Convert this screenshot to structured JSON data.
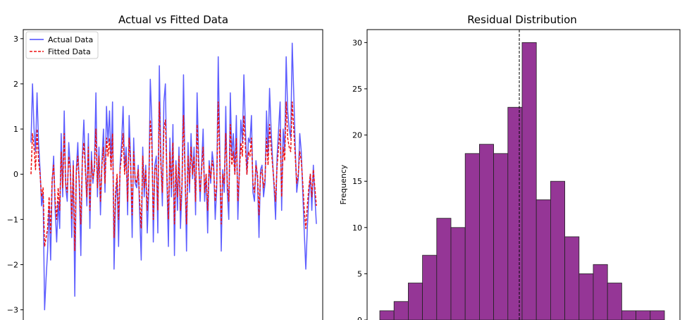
{
  "chart_data": [
    {
      "type": "line",
      "title": "Actual vs Fitted Data",
      "xlabel": "",
      "ylabel": "",
      "ylim": [
        -3.35,
        3.2
      ],
      "yticks": [
        3,
        2,
        1,
        0,
        -1,
        -2,
        -3
      ],
      "ytick_labels": [
        "3",
        "2",
        "1",
        "0",
        "−1",
        "−2",
        "−3"
      ],
      "legend": "top-left",
      "series": [
        {
          "name": "Actual Data",
          "color": "#4b4bff",
          "style": "solid",
          "values": [
            0.7,
            2.0,
            1.0,
            0.5,
            1.8,
            0.7,
            0.1,
            -0.7,
            -0.4,
            -3.0,
            -2.3,
            -1.7,
            -0.7,
            -1.9,
            -0.2,
            0.4,
            -0.8,
            -1.5,
            -0.6,
            -1.2,
            0.9,
            -0.5,
            1.4,
            -0.3,
            -0.6,
            0.7,
            0.2,
            -1.4,
            0.3,
            -2.7,
            0.1,
            0.7,
            -0.3,
            -1.8,
            0.4,
            1.2,
            0.2,
            -0.7,
            0.9,
            -1.2,
            0.5,
            -0.2,
            0.2,
            1.8,
            -0.5,
            0.6,
            -0.9,
            0.3,
            1.0,
            -0.4,
            1.5,
            0.7,
            1.4,
            0.2,
            1.6,
            -2.1,
            -0.6,
            -0.1,
            -1.6,
            0.2,
            0.7,
            1.5,
            0.1,
            0.6,
            -0.9,
            1.3,
            0.3,
            -1.4,
            0.8,
            -0.2,
            -0.3,
            0.2,
            -0.9,
            -1.9,
            0.6,
            -0.5,
            0.2,
            -1.3,
            -0.4,
            2.1,
            1.2,
            -1.5,
            0.2,
            0.4,
            -1.3,
            2.4,
            0.4,
            -0.7,
            1.6,
            2.0,
            -0.1,
            -1.6,
            0.8,
            -0.5,
            1.1,
            -1.8,
            0.3,
            -0.8,
            0.6,
            -1.2,
            -0.3,
            2.2,
            0.1,
            -1.7,
            0.7,
            -0.4,
            0.9,
            -0.1,
            0.6,
            -0.9,
            1.8,
            0.4,
            -0.6,
            0.2,
            1.0,
            -0.6,
            0.0,
            -1.3,
            0.3,
            -0.2,
            0.5,
            0.2,
            -1.0,
            -0.3,
            2.6,
            0.6,
            -1.7,
            0.1,
            -0.4,
            1.5,
            -0.4,
            -1.0,
            1.8,
            0.4,
            0.9,
            0.0,
            1.3,
            -1.0,
            0.1,
            1.2,
            0.7,
            2.2,
            1.0,
            0.0,
            0.8,
            0.7,
            1.3,
            -0.4,
            -0.6,
            0.3,
            -0.1,
            -1.4,
            0.1,
            0.2,
            -0.5,
            -0.2,
            1.4,
            0.4,
            1.9,
            1.0,
            0.3,
            -0.3,
            -1.0,
            0.4,
            1.0,
            1.6,
            -0.8,
            1.0,
            0.5,
            2.6,
            1.4,
            1.0,
            0.8,
            2.9,
            1.8,
            0.6,
            -0.4,
            -0.1,
            0.9,
            0.5,
            -0.4,
            -1.3,
            -2.1,
            -1.2,
            -0.5,
            0.0,
            -0.8,
            0.2,
            -0.5,
            -1.1
          ]
        },
        {
          "name": "Fitted Data",
          "color": "#ee1111",
          "style": "dashed",
          "values": [
            0.0,
            0.9,
            0.6,
            0.1,
            1.0,
            0.3,
            0.0,
            -0.5,
            -0.3,
            -1.6,
            -1.4,
            -1.2,
            -0.5,
            -1.3,
            -0.1,
            0.2,
            -0.6,
            -1.0,
            -0.3,
            -0.8,
            0.5,
            -0.3,
            0.9,
            -0.2,
            -0.4,
            0.4,
            0.1,
            -1.0,
            0.2,
            -1.7,
            0.0,
            0.4,
            -0.2,
            -1.1,
            0.3,
            0.7,
            0.1,
            -0.5,
            0.6,
            -0.8,
            0.3,
            -0.1,
            0.1,
            1.0,
            -0.3,
            0.4,
            -0.6,
            0.2,
            0.6,
            -0.2,
            0.8,
            0.4,
            0.8,
            0.1,
            0.9,
            -1.4,
            -0.4,
            0.0,
            -1.0,
            0.1,
            0.4,
            0.9,
            0.0,
            0.4,
            -0.6,
            0.8,
            0.2,
            -0.9,
            0.5,
            -0.1,
            -0.2,
            0.1,
            -0.6,
            -1.2,
            0.4,
            -0.3,
            0.1,
            -0.8,
            -0.2,
            1.2,
            0.7,
            -1.0,
            0.1,
            0.2,
            -0.8,
            1.6,
            0.2,
            -0.4,
            1.0,
            1.2,
            0.0,
            -1.0,
            0.5,
            -0.3,
            0.7,
            -1.1,
            0.2,
            -0.5,
            0.4,
            -0.8,
            -0.2,
            1.3,
            0.0,
            -1.1,
            0.4,
            -0.2,
            0.6,
            0.0,
            0.4,
            -0.6,
            1.1,
            0.2,
            -0.4,
            0.1,
            0.6,
            -0.4,
            0.0,
            -0.8,
            0.2,
            -0.1,
            0.3,
            0.1,
            -0.6,
            -0.2,
            1.6,
            0.3,
            -1.1,
            0.0,
            -0.2,
            0.9,
            -0.2,
            -0.6,
            1.1,
            0.2,
            0.5,
            0.0,
            0.8,
            -0.6,
            0.0,
            0.7,
            0.4,
            1.3,
            0.6,
            0.0,
            0.5,
            0.4,
            0.8,
            -0.2,
            -0.4,
            0.2,
            0.0,
            -0.9,
            0.0,
            0.1,
            -0.3,
            -0.1,
            0.8,
            0.2,
            1.1,
            0.6,
            0.2,
            -0.2,
            -0.6,
            0.2,
            0.6,
            1.0,
            -0.5,
            0.6,
            0.3,
            1.6,
            0.8,
            0.6,
            0.5,
            1.6,
            1.0,
            0.4,
            -0.2,
            0.0,
            0.5,
            0.3,
            -0.2,
            -0.8,
            -1.2,
            -0.7,
            -0.3,
            0.0,
            -0.5,
            0.1,
            -0.3,
            -0.7
          ]
        }
      ]
    },
    {
      "type": "bar",
      "title": "Residual Distribution",
      "xlabel": "",
      "ylabel": "Frequency",
      "ylim": [
        0,
        31.4
      ],
      "yticks": [
        0,
        5,
        10,
        15,
        20,
        25,
        30
      ],
      "ytick_labels": [
        "0",
        "5",
        "10",
        "15",
        "20",
        "25",
        "30"
      ],
      "bar_color": "#953696",
      "edge_color": "#222222",
      "mean_line_bin_index": 9,
      "values": [
        1,
        2,
        4,
        7,
        11,
        10,
        18,
        19,
        18,
        23,
        30,
        13,
        15,
        9,
        5,
        6,
        4,
        1,
        1,
        1
      ]
    }
  ]
}
